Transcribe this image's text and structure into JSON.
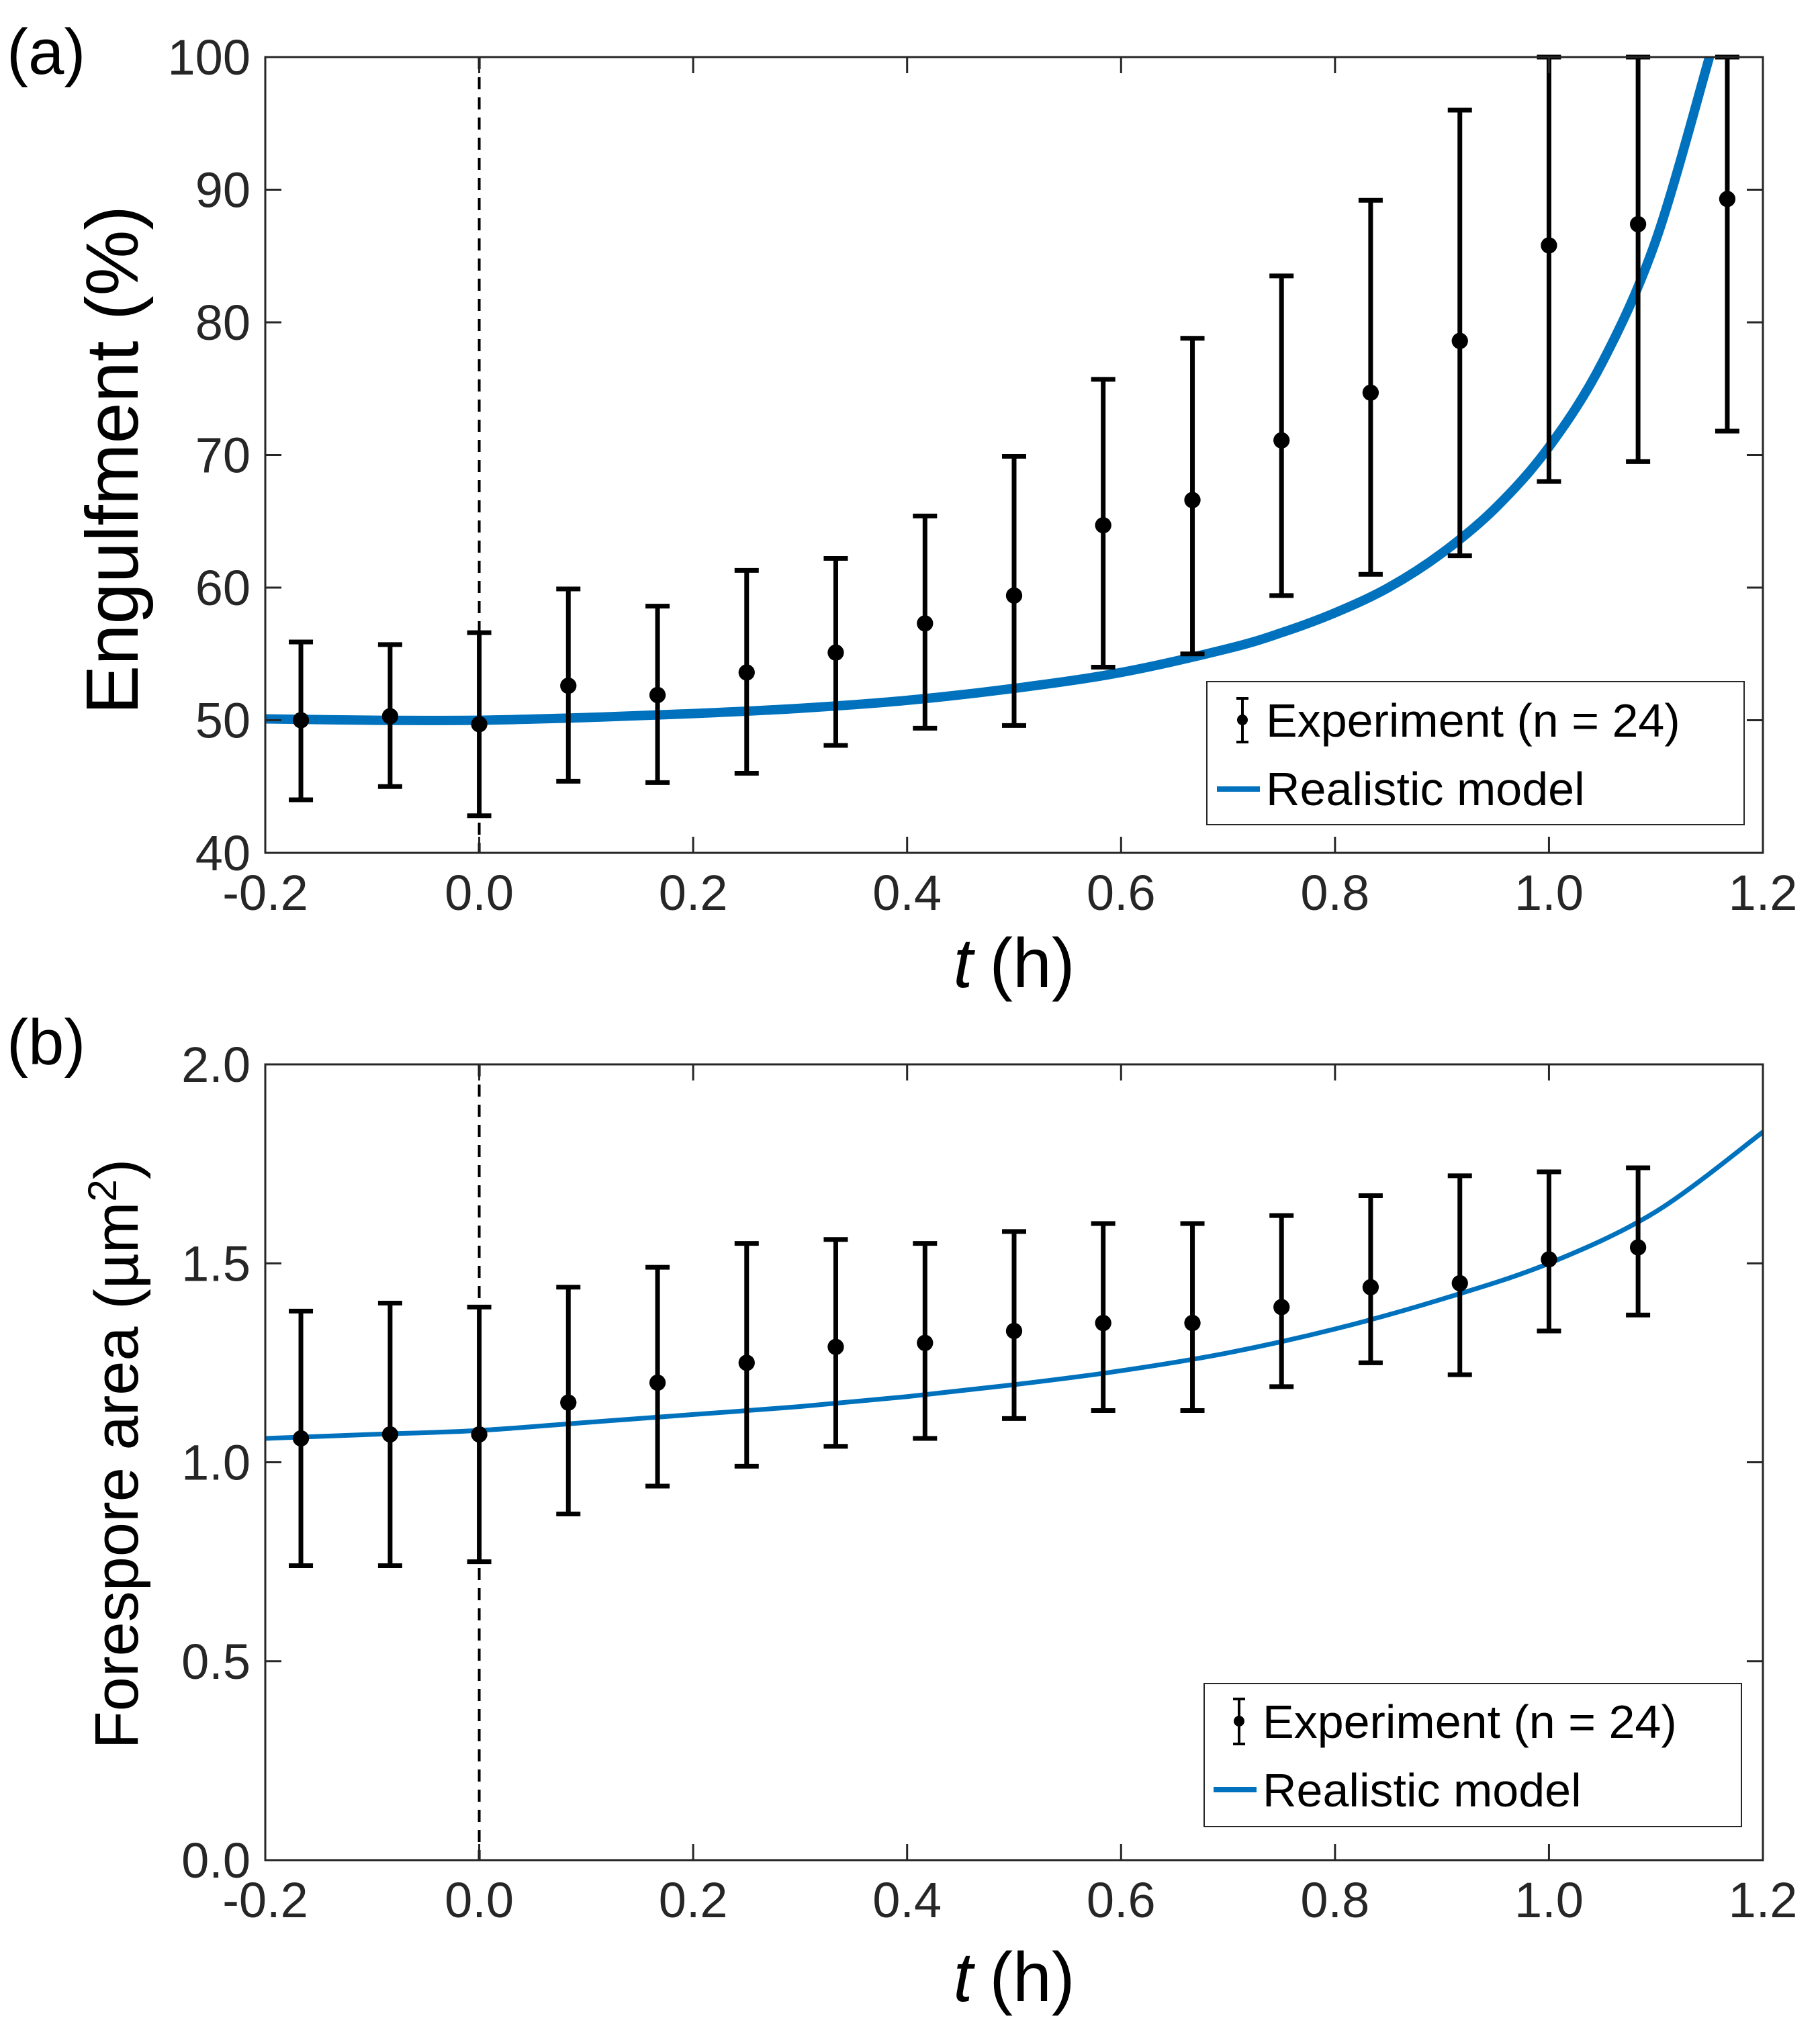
{
  "chart_data": [
    {
      "panel": "(a)",
      "type": "line",
      "xlabel_var": "t",
      "xlabel_unit": "(h)",
      "ylabel": "Engulfment (%)",
      "xlim": [
        -0.2,
        1.2
      ],
      "ylim": [
        40,
        100
      ],
      "xticks": [
        "-0.2",
        "0.0",
        "0.2",
        "0.4",
        "0.6",
        "0.8",
        "1.0",
        "1.2"
      ],
      "yticks": [
        "40",
        "50",
        "60",
        "70",
        "80",
        "90",
        "100"
      ],
      "vline_x": 0.0,
      "legend": {
        "position": "bottom-right",
        "experiment": "Experiment (n = 24)",
        "model": "Realistic model"
      },
      "colors": {
        "model": "#0072bd",
        "experiment": "#000000"
      },
      "experiment": {
        "x": [
          -0.1667,
          -0.0833,
          0.0,
          0.0833,
          0.1667,
          0.25,
          0.3333,
          0.4167,
          0.5,
          0.5833,
          0.6667,
          0.75,
          0.8333,
          0.9167,
          1.0,
          1.0833,
          1.1667
        ],
        "y": [
          50.0,
          50.3,
          49.7,
          52.6,
          51.9,
          53.6,
          55.1,
          57.3,
          59.4,
          64.7,
          66.6,
          71.1,
          74.7,
          78.6,
          85.8,
          87.4,
          89.3
        ],
        "err_low": [
          44.0,
          45.0,
          42.8,
          45.4,
          45.3,
          46.0,
          48.1,
          49.4,
          49.6,
          54.0,
          55.0,
          59.4,
          61.0,
          62.4,
          68.0,
          69.5,
          71.8
        ],
        "err_high": [
          55.9,
          55.7,
          56.6,
          59.9,
          58.6,
          61.3,
          62.2,
          65.4,
          69.9,
          75.7,
          78.8,
          83.5,
          89.2,
          96.0,
          100.0,
          100.0,
          100.0
        ]
      },
      "model": {
        "x": [
          -0.2,
          -0.1,
          0.0,
          0.1,
          0.2,
          0.3,
          0.4,
          0.5,
          0.6,
          0.7,
          0.75,
          0.8,
          0.85,
          0.9,
          0.95,
          1.0,
          1.05,
          1.1,
          1.15
        ],
        "y": [
          50.1,
          50.0,
          50.0,
          50.2,
          50.5,
          50.9,
          51.5,
          52.4,
          53.6,
          55.4,
          56.6,
          58.1,
          60.0,
          62.6,
          66.0,
          70.6,
          77.0,
          86.2,
          100.0
        ]
      }
    },
    {
      "panel": "(b)",
      "type": "line",
      "xlabel_var": "t",
      "xlabel_unit": "(h)",
      "ylabel_prefix": "Forespore area (µm",
      "ylabel_sup": "2",
      "ylabel_suffix": ")",
      "xlim": [
        -0.2,
        1.2
      ],
      "ylim": [
        0.0,
        2.0
      ],
      "xticks": [
        "-0.2",
        "0.0",
        "0.2",
        "0.4",
        "0.6",
        "0.8",
        "1.0",
        "1.2"
      ],
      "yticks": [
        "0.0",
        "0.5",
        "1.0",
        "1.5",
        "2.0"
      ],
      "vline_x": 0.0,
      "legend": {
        "position": "bottom-right",
        "experiment": "Experiment (n = 24)",
        "model": "Realistic model"
      },
      "colors": {
        "model": "#0072bd",
        "experiment": "#000000"
      },
      "experiment": {
        "x": [
          -0.1667,
          -0.0833,
          0.0,
          0.0833,
          0.1667,
          0.25,
          0.3333,
          0.4167,
          0.5,
          0.5833,
          0.6667,
          0.75,
          0.8333,
          0.9167,
          1.0,
          1.0833
        ],
        "y": [
          1.06,
          1.07,
          1.07,
          1.15,
          1.2,
          1.25,
          1.29,
          1.3,
          1.33,
          1.35,
          1.35,
          1.39,
          1.44,
          1.45,
          1.51,
          1.54
        ],
        "err_low": [
          0.74,
          0.74,
          0.75,
          0.87,
          0.94,
          0.99,
          1.04,
          1.06,
          1.11,
          1.13,
          1.13,
          1.19,
          1.25,
          1.22,
          1.33,
          1.37
        ],
        "err_high": [
          1.38,
          1.4,
          1.39,
          1.44,
          1.49,
          1.55,
          1.56,
          1.55,
          1.58,
          1.6,
          1.6,
          1.62,
          1.67,
          1.72,
          1.73,
          1.74
        ]
      },
      "model": {
        "x": [
          -0.2,
          -0.1,
          0.0,
          0.1,
          0.2,
          0.3,
          0.4,
          0.5,
          0.6,
          0.7,
          0.8,
          0.9,
          1.0,
          1.1,
          1.2
        ],
        "y": [
          1.06,
          1.07,
          1.08,
          1.1,
          1.12,
          1.14,
          1.165,
          1.195,
          1.23,
          1.275,
          1.335,
          1.41,
          1.5,
          1.63,
          1.83
        ]
      }
    }
  ]
}
